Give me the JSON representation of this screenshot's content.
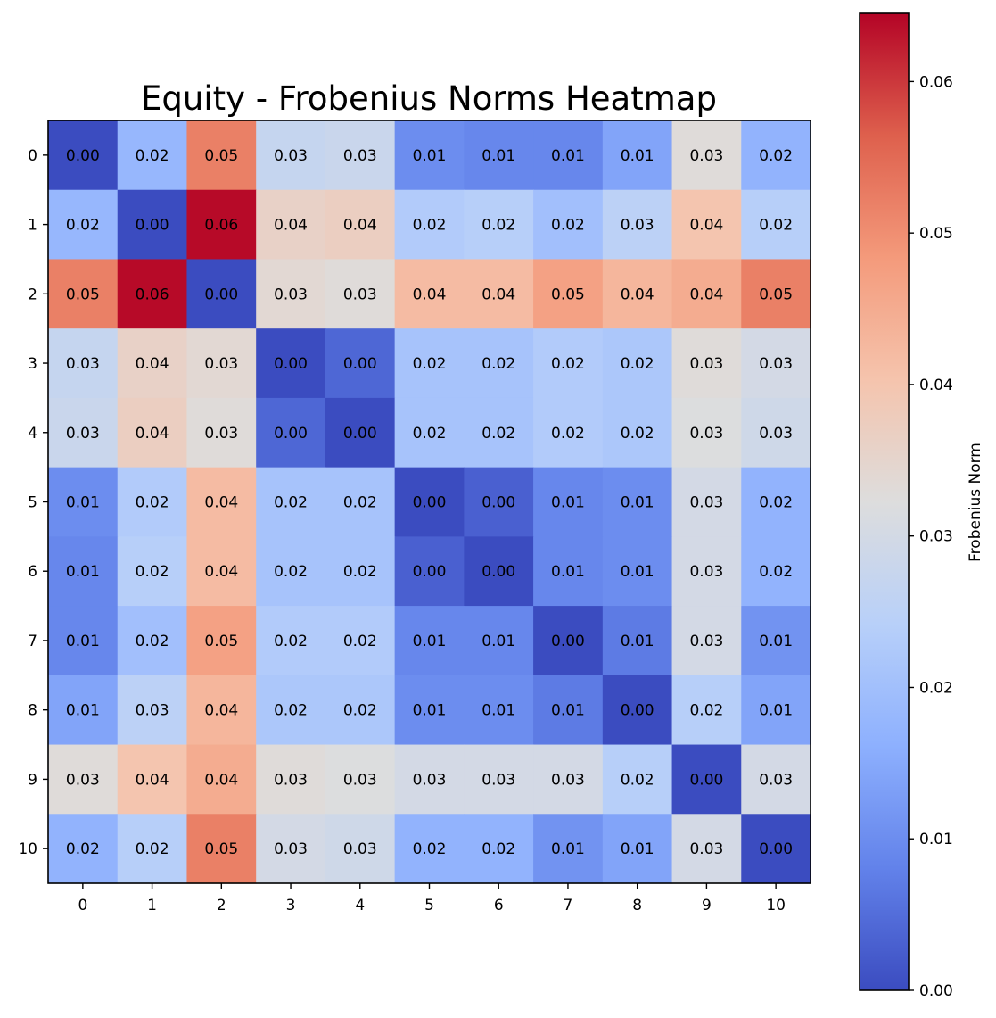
{
  "chart_data": {
    "type": "heatmap",
    "title": "Equity - Frobenius Norms Heatmap",
    "xlabel": "",
    "ylabel": "",
    "x_tick_labels": [
      "0",
      "1",
      "2",
      "3",
      "4",
      "5",
      "6",
      "7",
      "8",
      "9",
      "10"
    ],
    "y_tick_labels": [
      "0",
      "1",
      "2",
      "3",
      "4",
      "5",
      "6",
      "7",
      "8",
      "9",
      "10"
    ],
    "values": [
      [
        0.0,
        0.018,
        0.052,
        0.027,
        0.028,
        0.01,
        0.009,
        0.009,
        0.014,
        0.033,
        0.017
      ],
      [
        0.018,
        0.0,
        0.064,
        0.036,
        0.037,
        0.023,
        0.024,
        0.02,
        0.025,
        0.04,
        0.024
      ],
      [
        0.052,
        0.064,
        0.0,
        0.034,
        0.033,
        0.042,
        0.042,
        0.047,
        0.043,
        0.045,
        0.052
      ],
      [
        0.027,
        0.036,
        0.034,
        0.0,
        0.004,
        0.021,
        0.021,
        0.023,
        0.022,
        0.033,
        0.03
      ],
      [
        0.028,
        0.037,
        0.033,
        0.004,
        0.0,
        0.021,
        0.021,
        0.023,
        0.022,
        0.032,
        0.029
      ],
      [
        0.01,
        0.023,
        0.042,
        0.021,
        0.021,
        0.0,
        0.003,
        0.009,
        0.01,
        0.03,
        0.017
      ],
      [
        0.009,
        0.024,
        0.042,
        0.021,
        0.021,
        0.003,
        0.0,
        0.009,
        0.01,
        0.03,
        0.017
      ],
      [
        0.009,
        0.02,
        0.047,
        0.023,
        0.023,
        0.009,
        0.009,
        0.0,
        0.007,
        0.03,
        0.011
      ],
      [
        0.014,
        0.025,
        0.043,
        0.022,
        0.022,
        0.01,
        0.01,
        0.007,
        0.0,
        0.024,
        0.014
      ],
      [
        0.033,
        0.04,
        0.045,
        0.033,
        0.032,
        0.03,
        0.03,
        0.03,
        0.024,
        0.0,
        0.03
      ],
      [
        0.017,
        0.024,
        0.052,
        0.03,
        0.029,
        0.017,
        0.017,
        0.011,
        0.014,
        0.03,
        0.0
      ]
    ],
    "cell_labels": [
      [
        "0.00",
        "0.02",
        "0.05",
        "0.03",
        "0.03",
        "0.01",
        "0.01",
        "0.01",
        "0.01",
        "0.03",
        "0.02"
      ],
      [
        "0.02",
        "0.00",
        "0.06",
        "0.04",
        "0.04",
        "0.02",
        "0.02",
        "0.02",
        "0.03",
        "0.04",
        "0.02"
      ],
      [
        "0.05",
        "0.06",
        "0.00",
        "0.03",
        "0.03",
        "0.04",
        "0.04",
        "0.05",
        "0.04",
        "0.04",
        "0.05"
      ],
      [
        "0.03",
        "0.04",
        "0.03",
        "0.00",
        "0.00",
        "0.02",
        "0.02",
        "0.02",
        "0.02",
        "0.03",
        "0.03"
      ],
      [
        "0.03",
        "0.04",
        "0.03",
        "0.00",
        "0.00",
        "0.02",
        "0.02",
        "0.02",
        "0.02",
        "0.03",
        "0.03"
      ],
      [
        "0.01",
        "0.02",
        "0.04",
        "0.02",
        "0.02",
        "0.00",
        "0.00",
        "0.01",
        "0.01",
        "0.03",
        "0.02"
      ],
      [
        "0.01",
        "0.02",
        "0.04",
        "0.02",
        "0.02",
        "0.00",
        "0.00",
        "0.01",
        "0.01",
        "0.03",
        "0.02"
      ],
      [
        "0.01",
        "0.02",
        "0.05",
        "0.02",
        "0.02",
        "0.01",
        "0.01",
        "0.00",
        "0.01",
        "0.03",
        "0.01"
      ],
      [
        "0.01",
        "0.03",
        "0.04",
        "0.02",
        "0.02",
        "0.01",
        "0.01",
        "0.01",
        "0.00",
        "0.02",
        "0.01"
      ],
      [
        "0.03",
        "0.04",
        "0.04",
        "0.03",
        "0.03",
        "0.03",
        "0.03",
        "0.03",
        "0.02",
        "0.00",
        "0.03"
      ],
      [
        "0.02",
        "0.02",
        "0.05",
        "0.03",
        "0.03",
        "0.02",
        "0.02",
        "0.01",
        "0.01",
        "0.03",
        "0.00"
      ]
    ],
    "colormap": "coolwarm",
    "value_range": [
      0.0,
      0.0645
    ],
    "colorbar": {
      "label": "Frobenius Norm",
      "ticks": [
        0.0,
        0.01,
        0.02,
        0.03,
        0.04,
        0.05,
        0.06
      ],
      "tick_labels": [
        "0.00",
        "0.01",
        "0.02",
        "0.03",
        "0.04",
        "0.05",
        "0.06"
      ],
      "placement": "right"
    },
    "grid": false
  }
}
